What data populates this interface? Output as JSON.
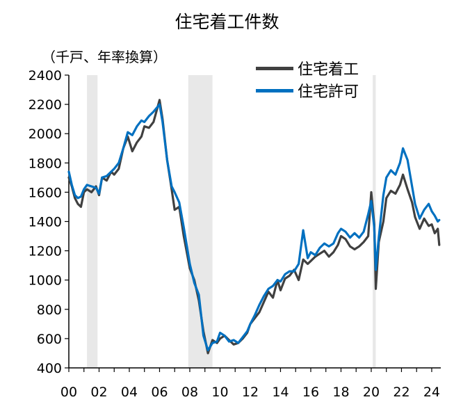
{
  "chart_data": {
    "type": "line",
    "title": "住宅着工件数",
    "unit_label": "（千戸、年率換算）",
    "x_range": [
      2000,
      2024.6
    ],
    "ylim": [
      400,
      2400
    ],
    "y_ticks": [
      400,
      600,
      800,
      1000,
      1200,
      1400,
      1600,
      1800,
      2000,
      2200,
      2400
    ],
    "x_ticks": [
      {
        "value": 2000,
        "label": "00"
      },
      {
        "value": 2002,
        "label": "02"
      },
      {
        "value": 2004,
        "label": "04"
      },
      {
        "value": 2006,
        "label": "06"
      },
      {
        "value": 2008,
        "label": "08"
      },
      {
        "value": 2010,
        "label": "10"
      },
      {
        "value": 2012,
        "label": "12"
      },
      {
        "value": 2014,
        "label": "14"
      },
      {
        "value": 2016,
        "label": "16"
      },
      {
        "value": 2018,
        "label": "18"
      },
      {
        "value": 2020,
        "label": "20"
      },
      {
        "value": 2022,
        "label": "22"
      },
      {
        "value": 2024,
        "label": "24"
      }
    ],
    "recession_bands": [
      {
        "start": 2001.2,
        "end": 2001.9
      },
      {
        "start": 2007.9,
        "end": 2009.5
      },
      {
        "start": 2020.1,
        "end": 2020.3
      }
    ],
    "legend_placement": "top-right",
    "grid": false,
    "series": [
      {
        "name": "住宅着工",
        "color": "#404040",
        "points": [
          [
            2000.0,
            1700
          ],
          [
            2000.2,
            1640
          ],
          [
            2000.4,
            1560
          ],
          [
            2000.6,
            1520
          ],
          [
            2000.8,
            1500
          ],
          [
            2001.0,
            1600
          ],
          [
            2001.2,
            1620
          ],
          [
            2001.5,
            1600
          ],
          [
            2001.8,
            1640
          ],
          [
            2002.0,
            1580
          ],
          [
            2002.2,
            1700
          ],
          [
            2002.5,
            1680
          ],
          [
            2002.8,
            1740
          ],
          [
            2003.0,
            1720
          ],
          [
            2003.3,
            1760
          ],
          [
            2003.6,
            1900
          ],
          [
            2003.9,
            1980
          ],
          [
            2004.2,
            1880
          ],
          [
            2004.5,
            1940
          ],
          [
            2004.8,
            1980
          ],
          [
            2005.0,
            2050
          ],
          [
            2005.3,
            2040
          ],
          [
            2005.6,
            2080
          ],
          [
            2006.0,
            2230
          ],
          [
            2006.2,
            2100
          ],
          [
            2006.5,
            1820
          ],
          [
            2006.8,
            1620
          ],
          [
            2007.0,
            1480
          ],
          [
            2007.3,
            1500
          ],
          [
            2007.6,
            1300
          ],
          [
            2008.0,
            1080
          ],
          [
            2008.3,
            1000
          ],
          [
            2008.6,
            860
          ],
          [
            2008.9,
            650
          ],
          [
            2009.2,
            500
          ],
          [
            2009.5,
            590
          ],
          [
            2009.8,
            570
          ],
          [
            2010.0,
            600
          ],
          [
            2010.3,
            620
          ],
          [
            2010.6,
            590
          ],
          [
            2010.9,
            560
          ],
          [
            2011.2,
            570
          ],
          [
            2011.5,
            600
          ],
          [
            2011.8,
            640
          ],
          [
            2012.0,
            700
          ],
          [
            2012.3,
            740
          ],
          [
            2012.6,
            780
          ],
          [
            2012.9,
            850
          ],
          [
            2013.2,
            920
          ],
          [
            2013.5,
            880
          ],
          [
            2013.8,
            1000
          ],
          [
            2014.0,
            930
          ],
          [
            2014.3,
            1010
          ],
          [
            2014.6,
            1030
          ],
          [
            2014.9,
            1070
          ],
          [
            2015.2,
            1000
          ],
          [
            2015.5,
            1140
          ],
          [
            2015.8,
            1110
          ],
          [
            2016.0,
            1130
          ],
          [
            2016.3,
            1160
          ],
          [
            2016.6,
            1180
          ],
          [
            2016.9,
            1200
          ],
          [
            2017.2,
            1160
          ],
          [
            2017.5,
            1190
          ],
          [
            2017.8,
            1240
          ],
          [
            2018.0,
            1300
          ],
          [
            2018.3,
            1280
          ],
          [
            2018.6,
            1230
          ],
          [
            2018.9,
            1210
          ],
          [
            2019.2,
            1230
          ],
          [
            2019.5,
            1260
          ],
          [
            2019.8,
            1300
          ],
          [
            2020.0,
            1600
          ],
          [
            2020.2,
            1380
          ],
          [
            2020.3,
            940
          ],
          [
            2020.5,
            1260
          ],
          [
            2020.8,
            1400
          ],
          [
            2021.0,
            1560
          ],
          [
            2021.3,
            1610
          ],
          [
            2021.6,
            1590
          ],
          [
            2021.9,
            1650
          ],
          [
            2022.1,
            1720
          ],
          [
            2022.4,
            1620
          ],
          [
            2022.7,
            1530
          ],
          [
            2022.9,
            1430
          ],
          [
            2023.2,
            1350
          ],
          [
            2023.5,
            1420
          ],
          [
            2023.8,
            1370
          ],
          [
            2024.0,
            1380
          ],
          [
            2024.2,
            1320
          ],
          [
            2024.4,
            1350
          ],
          [
            2024.5,
            1240
          ]
        ]
      },
      {
        "name": "住宅許可",
        "color": "#0070c0",
        "points": [
          [
            2000.0,
            1740
          ],
          [
            2000.2,
            1650
          ],
          [
            2000.4,
            1580
          ],
          [
            2000.6,
            1560
          ],
          [
            2000.8,
            1570
          ],
          [
            2001.0,
            1620
          ],
          [
            2001.2,
            1650
          ],
          [
            2001.5,
            1640
          ],
          [
            2001.8,
            1630
          ],
          [
            2002.0,
            1590
          ],
          [
            2002.2,
            1700
          ],
          [
            2002.5,
            1710
          ],
          [
            2002.8,
            1740
          ],
          [
            2003.0,
            1760
          ],
          [
            2003.3,
            1800
          ],
          [
            2003.6,
            1900
          ],
          [
            2003.9,
            2010
          ],
          [
            2004.2,
            1990
          ],
          [
            2004.5,
            2050
          ],
          [
            2004.8,
            2090
          ],
          [
            2005.0,
            2080
          ],
          [
            2005.3,
            2120
          ],
          [
            2005.6,
            2150
          ],
          [
            2006.0,
            2200
          ],
          [
            2006.2,
            2080
          ],
          [
            2006.5,
            1820
          ],
          [
            2006.8,
            1640
          ],
          [
            2007.0,
            1600
          ],
          [
            2007.3,
            1530
          ],
          [
            2007.6,
            1360
          ],
          [
            2008.0,
            1110
          ],
          [
            2008.3,
            980
          ],
          [
            2008.6,
            900
          ],
          [
            2008.9,
            620
          ],
          [
            2009.2,
            520
          ],
          [
            2009.5,
            570
          ],
          [
            2009.8,
            580
          ],
          [
            2010.0,
            640
          ],
          [
            2010.3,
            620
          ],
          [
            2010.6,
            580
          ],
          [
            2010.9,
            590
          ],
          [
            2011.2,
            570
          ],
          [
            2011.5,
            610
          ],
          [
            2011.8,
            650
          ],
          [
            2012.0,
            700
          ],
          [
            2012.3,
            760
          ],
          [
            2012.6,
            830
          ],
          [
            2012.9,
            890
          ],
          [
            2013.2,
            940
          ],
          [
            2013.5,
            960
          ],
          [
            2013.8,
            1000
          ],
          [
            2014.0,
            990
          ],
          [
            2014.3,
            1040
          ],
          [
            2014.6,
            1060
          ],
          [
            2014.9,
            1060
          ],
          [
            2015.2,
            1110
          ],
          [
            2015.5,
            1340
          ],
          [
            2015.8,
            1150
          ],
          [
            2016.0,
            1190
          ],
          [
            2016.3,
            1170
          ],
          [
            2016.6,
            1220
          ],
          [
            2016.9,
            1250
          ],
          [
            2017.2,
            1230
          ],
          [
            2017.5,
            1250
          ],
          [
            2017.8,
            1320
          ],
          [
            2018.0,
            1350
          ],
          [
            2018.3,
            1330
          ],
          [
            2018.6,
            1290
          ],
          [
            2018.9,
            1320
          ],
          [
            2019.2,
            1290
          ],
          [
            2019.5,
            1330
          ],
          [
            2019.8,
            1450
          ],
          [
            2020.0,
            1540
          ],
          [
            2020.2,
            1360
          ],
          [
            2020.3,
            1070
          ],
          [
            2020.5,
            1290
          ],
          [
            2020.8,
            1580
          ],
          [
            2021.0,
            1700
          ],
          [
            2021.3,
            1750
          ],
          [
            2021.6,
            1720
          ],
          [
            2021.9,
            1800
          ],
          [
            2022.1,
            1900
          ],
          [
            2022.4,
            1820
          ],
          [
            2022.7,
            1640
          ],
          [
            2022.9,
            1520
          ],
          [
            2023.2,
            1420
          ],
          [
            2023.5,
            1480
          ],
          [
            2023.8,
            1520
          ],
          [
            2024.0,
            1470
          ],
          [
            2024.2,
            1440
          ],
          [
            2024.4,
            1400
          ],
          [
            2024.5,
            1410
          ]
        ]
      }
    ]
  }
}
